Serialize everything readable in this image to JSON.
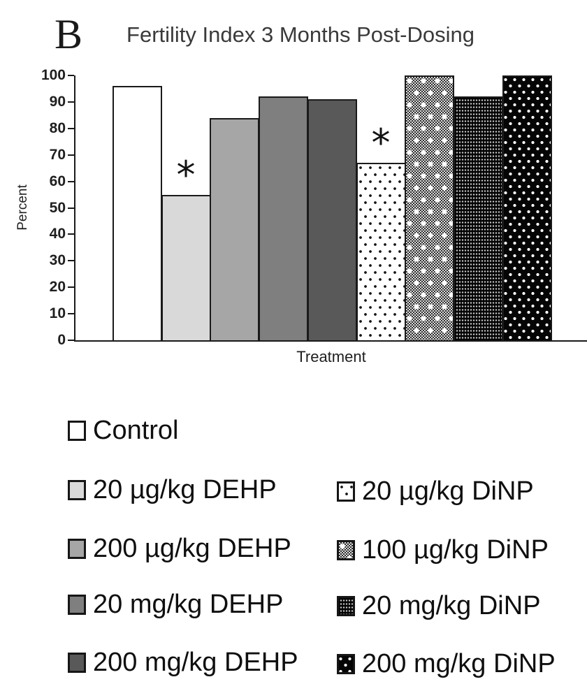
{
  "panel_label": "B",
  "title": "Fertility Index 3 Months Post-Dosing",
  "y_axis_label": "Percent",
  "x_axis_label": "Treatment",
  "chart_data": {
    "type": "bar",
    "title": "Fertility Index 3 Months Post-Dosing",
    "xlabel": "Treatment",
    "ylabel": "Percent",
    "ylim": [
      0,
      100
    ],
    "yticks": [
      0,
      10,
      20,
      30,
      40,
      50,
      60,
      70,
      80,
      90,
      100
    ],
    "grid": "off",
    "legend_position": "below",
    "categories": [
      "Control",
      "20 µg/kg DEHP",
      "200 µg/kg DEHP",
      "20 mg/kg DEHP",
      "200 mg/kg DEHP",
      "20 µg/kg DiNP",
      "100 µg/kg DiNP",
      "20 mg/kg DiNP",
      "200 mg/kg DiNP"
    ],
    "values": [
      96,
      55,
      84,
      92,
      91,
      67,
      100,
      92,
      100
    ],
    "patterns": [
      "white",
      "gray-light",
      "gray-med",
      "gray",
      "gray-dark",
      "white-dots",
      "checker-dots",
      "fine-dots",
      "black-dots"
    ],
    "significance": [
      {
        "index": 1,
        "marker": "*"
      },
      {
        "index": 5,
        "marker": "*"
      }
    ]
  },
  "legend": {
    "columns": [
      {
        "items": [
          {
            "label": "Control",
            "pattern": "white"
          },
          {
            "label": "20 µg/kg DEHP",
            "pattern": "gray-light"
          },
          {
            "label": "200 µg/kg DEHP",
            "pattern": "gray-med"
          },
          {
            "label": "20 mg/kg DEHP",
            "pattern": "gray"
          },
          {
            "label": "200 mg/kg DEHP",
            "pattern": "gray-dark"
          }
        ]
      },
      {
        "items": [
          {
            "label": "20 µg/kg DiNP",
            "pattern": "white-dots"
          },
          {
            "label": "100 µg/kg DiNP",
            "pattern": "checker-dots"
          },
          {
            "label": "20 mg/kg DiNP",
            "pattern": "fine-dots"
          },
          {
            "label": "200 mg/kg DiNP",
            "pattern": "black-dots"
          }
        ]
      }
    ]
  }
}
